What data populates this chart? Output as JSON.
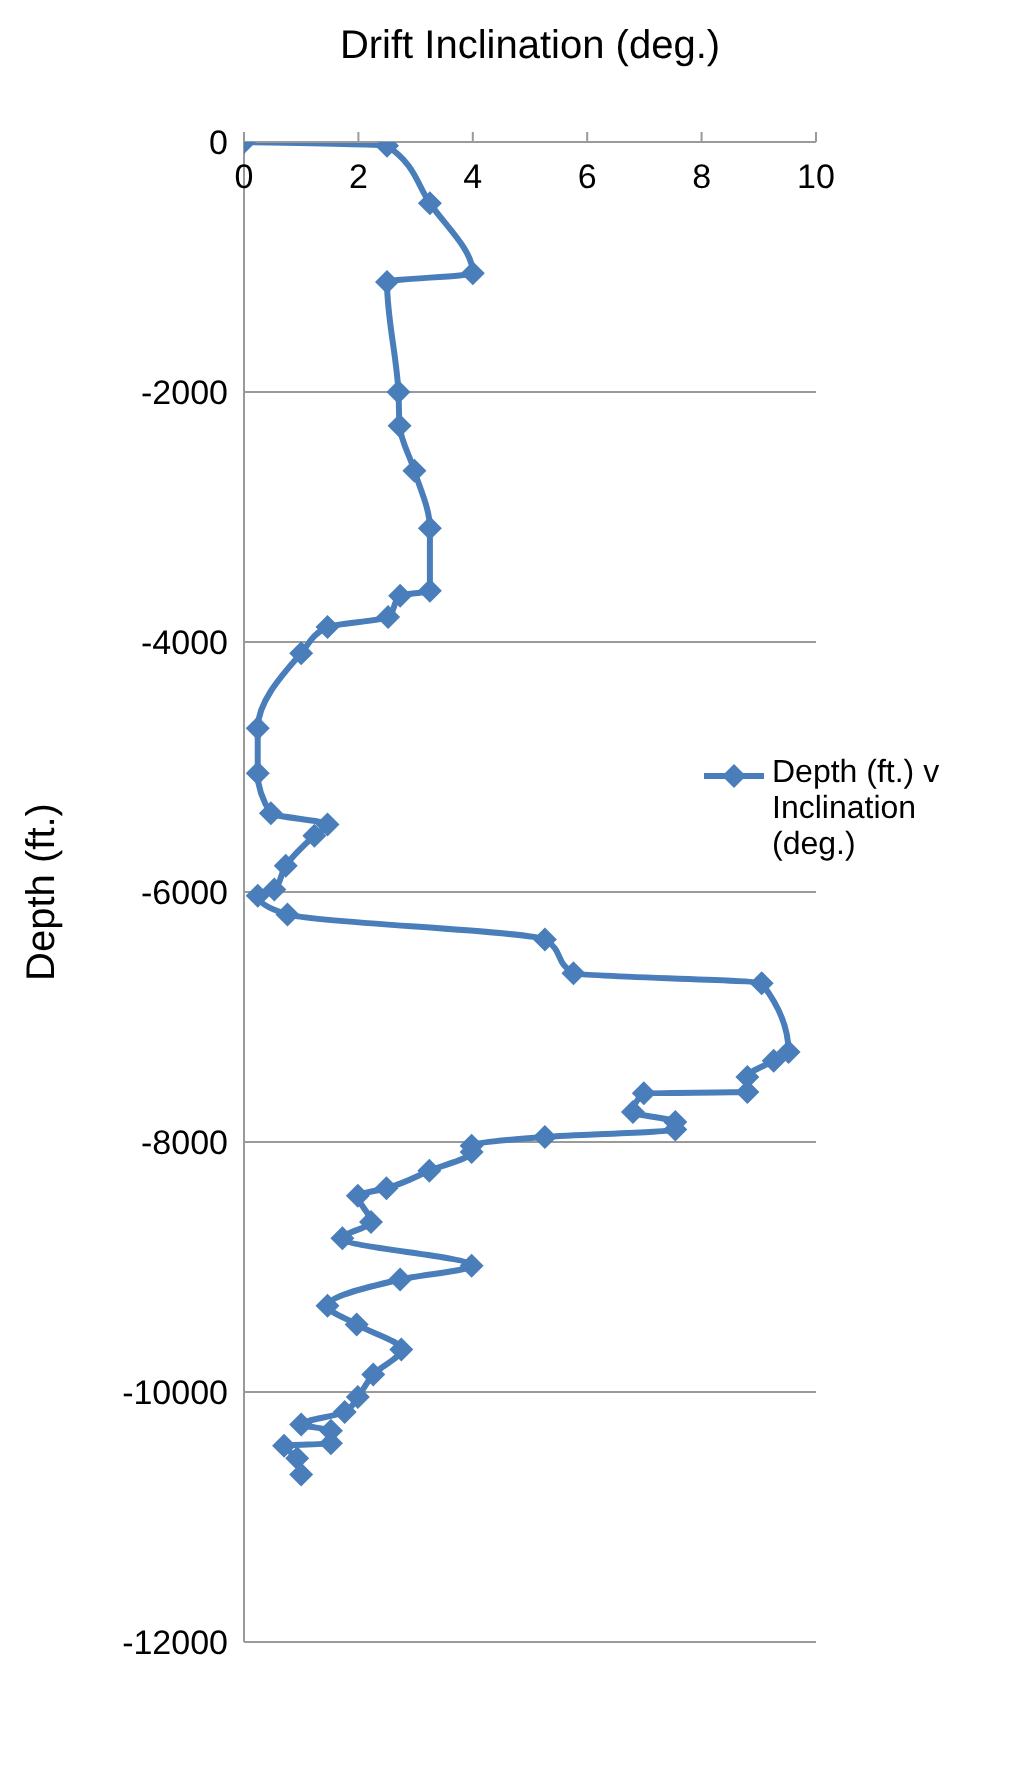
{
  "chart_data": {
    "type": "line",
    "xlabel": "Drift Inclination (deg.)",
    "ylabel": "Depth (ft.)",
    "xlim": [
      0,
      10
    ],
    "xticks": [
      0,
      2,
      4,
      6,
      8,
      10
    ],
    "ylim": [
      -12000,
      0
    ],
    "yticks": [
      -12000,
      -10000,
      -8000,
      -6000,
      -4000,
      -2000,
      0
    ],
    "grid": "y",
    "legend": "right",
    "marker": "diamond",
    "line_style": "solid",
    "series": [
      {
        "name": "Depth (ft.) v Inclination (deg.)",
        "color": "#4a7ebb",
        "x": [
          0,
          2.5,
          3.25,
          4.0,
          2.5,
          2.7,
          2.72,
          2.98,
          3.25,
          3.25,
          2.73,
          2.52,
          1.46,
          1.0,
          0.24,
          0.24,
          0.47,
          1.46,
          1.23,
          0.73,
          0.53,
          0.24,
          0.76,
          5.26,
          5.76,
          9.05,
          9.52,
          9.26,
          8.8,
          8.8,
          6.99,
          6.8,
          7.54,
          7.54,
          5.26,
          3.98,
          3.98,
          3.24,
          2.49,
          1.99,
          2.22,
          1.72,
          3.98,
          2.73,
          1.46,
          1.97,
          2.75,
          2.26,
          1.99,
          1.76,
          1.0,
          1.52,
          1.52,
          0.7,
          0.93,
          1.0
        ],
        "values": [
          0,
          -30,
          -490,
          -1050,
          -1120,
          -2000,
          -2270,
          -2630,
          -3090,
          -3590,
          -3630,
          -3800,
          -3880,
          -4090,
          -4690,
          -5050,
          -5370,
          -5460,
          -5550,
          -5790,
          -5980,
          -6030,
          -6180,
          -6380,
          -6650,
          -6730,
          -7280,
          -7350,
          -7480,
          -7600,
          -7610,
          -7760,
          -7840,
          -7900,
          -7960,
          -8030,
          -8080,
          -8230,
          -8370,
          -8430,
          -8640,
          -8770,
          -8990,
          -9100,
          -9310,
          -9460,
          -9660,
          -9860,
          -10040,
          -10160,
          -10260,
          -10310,
          -10410,
          -10430,
          -10530,
          -10660
        ]
      }
    ]
  }
}
